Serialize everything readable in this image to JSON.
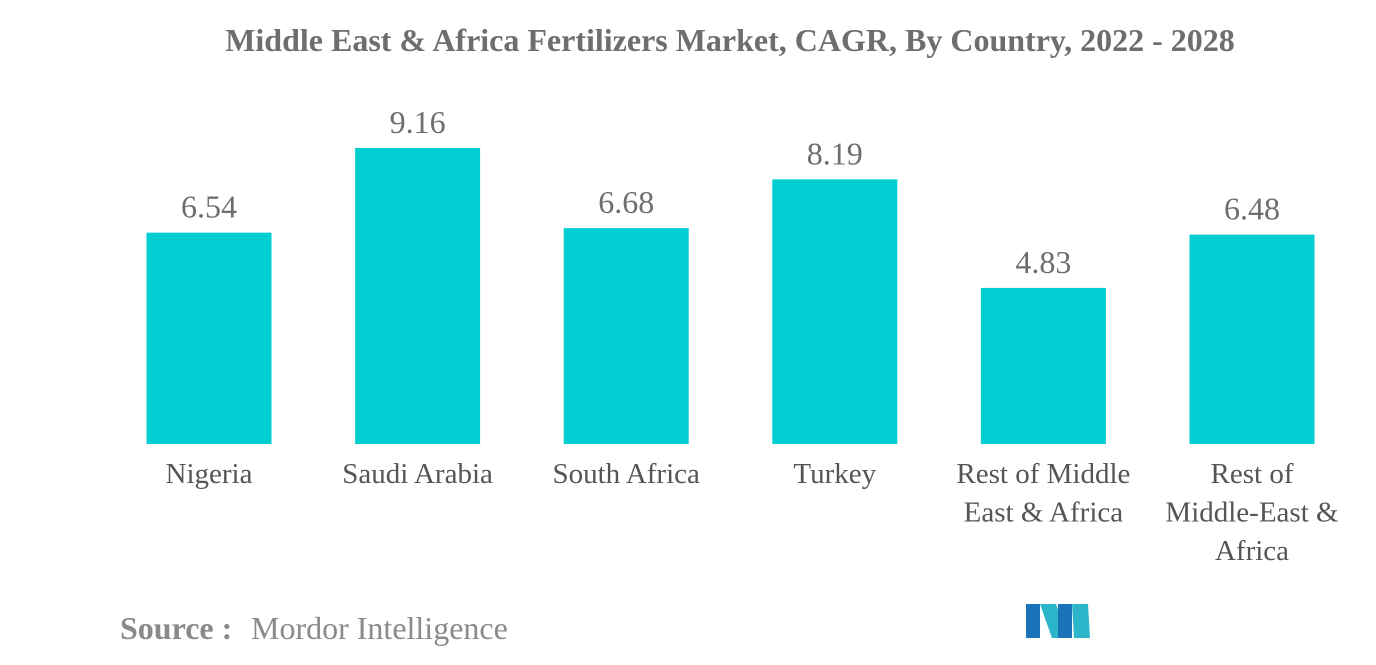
{
  "chart_data": {
    "type": "bar",
    "title": "Middle East & Africa Fertilizers Market, CAGR, By Country, 2022 - 2028",
    "categories": [
      [
        "Nigeria"
      ],
      [
        "Saudi Arabia"
      ],
      [
        "South Africa"
      ],
      [
        "Turkey"
      ],
      [
        "Rest of Middle",
        "East & Africa"
      ],
      [
        "Rest of",
        "Middle-East &",
        "Africa"
      ]
    ],
    "values": [
      6.54,
      9.16,
      6.68,
      8.19,
      4.83,
      6.48
    ],
    "value_labels": [
      "6.54",
      "9.16",
      "6.68",
      "8.19",
      "4.83",
      "6.48"
    ],
    "ylim": [
      0,
      9.16
    ],
    "grid": false,
    "bar_color": "#00ced1"
  },
  "source": {
    "label": "Source :",
    "value": "Mordor Intelligence"
  },
  "logo": {
    "name": "mordor-intelligence-logo",
    "colors": [
      "#1a73b8",
      "#2ab5c8"
    ]
  }
}
